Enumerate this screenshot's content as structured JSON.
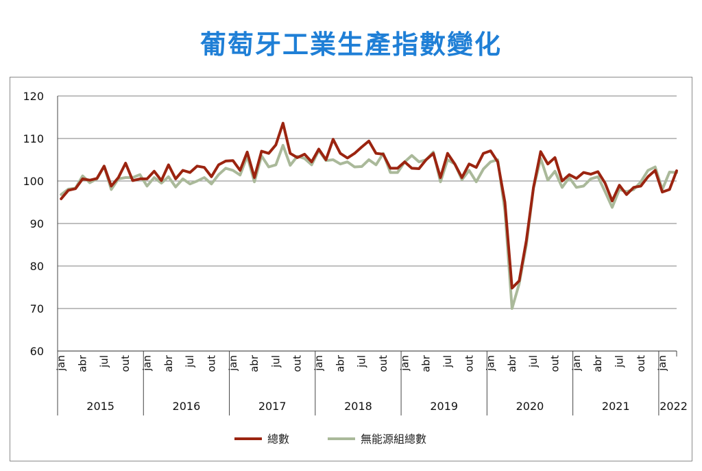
{
  "colors": {
    "title": "#1f7fd6",
    "total": "#9b2410",
    "no_energy": "#aab99a",
    "grid": "#999999",
    "axis": "#444444"
  },
  "chart_data": {
    "type": "line",
    "title": "葡萄牙工業生產指數變化",
    "xlabel": "",
    "ylabel": "",
    "ylim": [
      60,
      120
    ],
    "yticks": [
      60,
      70,
      80,
      90,
      100,
      110,
      120
    ],
    "grid": true,
    "legend": "bottom",
    "month_labels": [
      "jan",
      "abr",
      "jul",
      "out"
    ],
    "years": [
      "2015",
      "2016",
      "2017",
      "2018",
      "2019",
      "2020",
      "2021",
      "2022"
    ],
    "series": [
      {
        "name": "總數",
        "values": [
          95.8,
          97.8,
          98.2,
          100.5,
          100.2,
          100.6,
          103.5,
          98.8,
          100.8,
          104.2,
          100.1,
          100.5,
          100.5,
          102.3,
          100.1,
          103.8,
          100.5,
          102.5,
          102.0,
          103.5,
          103.2,
          101.0,
          103.8,
          104.7,
          104.8,
          102.5,
          106.8,
          100.8,
          107.0,
          106.5,
          108.5,
          113.6,
          106.5,
          105.5,
          106.3,
          104.5,
          107.5,
          105.0,
          109.8,
          106.5,
          105.4,
          106.5,
          108.0,
          109.4,
          106.5,
          106.3,
          103.0,
          103.0,
          104.5,
          103.0,
          102.9,
          105.0,
          106.5,
          100.8,
          106.5,
          104.0,
          100.8,
          104.0,
          103.2,
          106.5,
          107.1,
          104.5,
          95.0,
          74.8,
          76.5,
          86.0,
          98.5,
          106.9,
          104.0,
          105.5,
          100.0,
          101.5,
          100.6,
          102.0,
          101.6,
          102.2,
          99.5,
          95.3,
          99.0,
          96.8,
          98.5,
          98.8,
          101.0,
          102.5,
          97.4,
          98.0,
          102.4
        ]
      },
      {
        "name": "無能源組總數",
        "values": [
          96.8,
          98.1,
          98.3,
          101.2,
          99.6,
          100.5,
          103.5,
          98.0,
          100.5,
          100.8,
          100.8,
          101.5,
          98.8,
          100.8,
          99.5,
          101.0,
          98.6,
          100.5,
          99.3,
          100.0,
          100.8,
          99.3,
          101.5,
          103.0,
          102.5,
          101.4,
          105.8,
          99.8,
          105.9,
          103.3,
          103.8,
          108.4,
          103.7,
          105.8,
          105.3,
          103.8,
          107.2,
          104.8,
          105.0,
          104.0,
          104.5,
          103.3,
          103.4,
          105.0,
          103.8,
          106.5,
          102.0,
          102.0,
          104.5,
          106.0,
          104.5,
          105.0,
          106.8,
          99.8,
          105.0,
          104.0,
          100.3,
          102.5,
          99.8,
          102.8,
          104.5,
          105.0,
          93.0,
          70.0,
          75.8,
          85.0,
          98.3,
          105.3,
          100.2,
          102.3,
          98.5,
          100.8,
          98.5,
          98.8,
          100.5,
          101.0,
          97.5,
          93.8,
          98.0,
          97.5,
          98.0,
          99.8,
          102.5,
          103.3,
          98.0,
          102.1,
          102.0
        ]
      }
    ]
  }
}
